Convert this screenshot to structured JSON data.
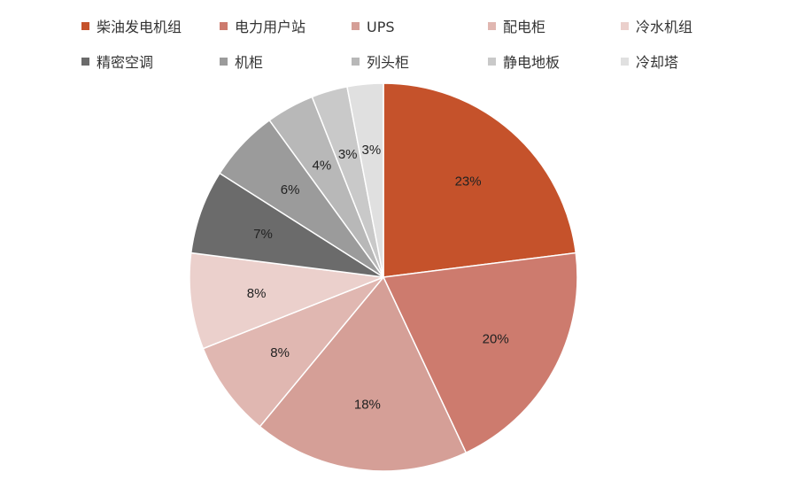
{
  "chart_data": {
    "type": "pie",
    "categories": [
      "柴油发电机组",
      "电力用户站",
      "UPS",
      "配电柜",
      "冷水机组",
      "精密空调",
      "机柜",
      "列头柜",
      "静电地板",
      "冷却塔"
    ],
    "values": [
      23,
      20,
      18,
      8,
      8,
      7,
      6,
      4,
      3,
      3
    ],
    "labels": [
      "23%",
      "20%",
      "18%",
      "8%",
      "8%",
      "7%",
      "6%",
      "4%",
      "3%",
      "3%"
    ],
    "colors": [
      "#c5522b",
      "#cd7b6e",
      "#d59f97",
      "#e0b7b1",
      "#ebd0cc",
      "#6b6b6b",
      "#9b9b9b",
      "#b8b8b8",
      "#c9c9c9",
      "#e0e0e0"
    ],
    "legend_position": "top"
  }
}
